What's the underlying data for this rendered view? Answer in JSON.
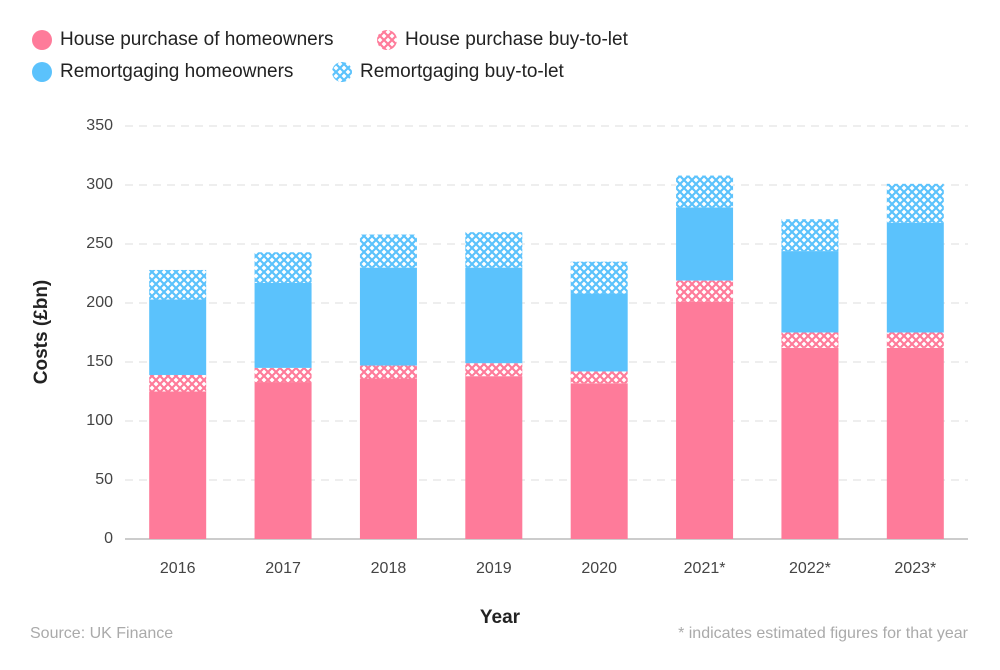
{
  "chart_data": {
    "type": "stacked-bar",
    "y_label": "Costs (£bn)",
    "x_label": "Year",
    "source": "Source: UK Finance",
    "note": "* indicates estimated figures for that year",
    "categories": [
      "2016",
      "2017",
      "2018",
      "2019",
      "2020",
      "2021*",
      "2022*",
      "2023*"
    ],
    "series": [
      {
        "name": "House purchase of homeowners",
        "color": "#fe7b9a",
        "pattern": "solid",
        "values": [
          125,
          133,
          136,
          138,
          132,
          201,
          162,
          162
        ]
      },
      {
        "name": "House purchase buy-to-let",
        "color": "#fe7b9a",
        "pattern": "crosshatch",
        "values": [
          14,
          12,
          11,
          11,
          10,
          18,
          13,
          13
        ]
      },
      {
        "name": "Remortgaging homeowners",
        "color": "#5bc2fc",
        "pattern": "solid",
        "values": [
          64,
          72,
          83,
          81,
          66,
          62,
          69,
          93
        ]
      },
      {
        "name": "Remortgaging buy-to-let",
        "color": "#5bc2fc",
        "pattern": "crosshatch",
        "values": [
          25,
          26,
          28,
          30,
          27,
          27,
          27,
          33
        ]
      }
    ],
    "ylim": [
      0,
      350
    ],
    "yticks": [
      0,
      50,
      100,
      150,
      200,
      250,
      300,
      350
    ],
    "grid": true
  }
}
